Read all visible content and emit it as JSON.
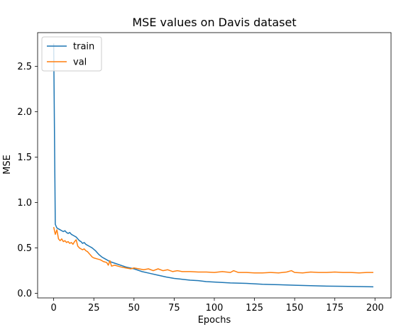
{
  "chart_data": {
    "type": "line",
    "title": "MSE values on Davis dataset",
    "xlabel": "Epochs",
    "ylabel": "MSE",
    "xlim": [
      -10,
      210
    ],
    "ylim": [
      -0.05,
      2.87
    ],
    "xticks": [
      0,
      25,
      50,
      75,
      100,
      125,
      150,
      175,
      200
    ],
    "yticks": [
      0.0,
      0.5,
      1.0,
      1.5,
      2.0,
      2.5
    ],
    "ytick_labels": [
      "0.0",
      "0.5",
      "1.0",
      "1.5",
      "2.0",
      "2.5"
    ],
    "grid": false,
    "legend_position": "top-left",
    "series": [
      {
        "name": "train",
        "color": "#1f77b4",
        "points": [
          [
            0,
            2.75
          ],
          [
            1,
            0.76
          ],
          [
            2,
            0.72
          ],
          [
            3,
            0.71
          ],
          [
            4,
            0.7
          ],
          [
            5,
            0.69
          ],
          [
            6,
            0.68
          ],
          [
            7,
            0.69
          ],
          [
            8,
            0.67
          ],
          [
            9,
            0.66
          ],
          [
            10,
            0.67
          ],
          [
            11,
            0.65
          ],
          [
            12,
            0.64
          ],
          [
            13,
            0.63
          ],
          [
            14,
            0.62
          ],
          [
            15,
            0.6
          ],
          [
            16,
            0.58
          ],
          [
            17,
            0.57
          ],
          [
            18,
            0.55
          ],
          [
            19,
            0.56
          ],
          [
            20,
            0.54
          ],
          [
            22,
            0.52
          ],
          [
            24,
            0.5
          ],
          [
            26,
            0.47
          ],
          [
            28,
            0.43
          ],
          [
            30,
            0.4
          ],
          [
            32,
            0.38
          ],
          [
            35,
            0.35
          ],
          [
            40,
            0.32
          ],
          [
            45,
            0.29
          ],
          [
            50,
            0.27
          ],
          [
            55,
            0.24
          ],
          [
            60,
            0.22
          ],
          [
            65,
            0.2
          ],
          [
            70,
            0.18
          ],
          [
            75,
            0.165
          ],
          [
            80,
            0.155
          ],
          [
            85,
            0.145
          ],
          [
            90,
            0.14
          ],
          [
            95,
            0.13
          ],
          [
            100,
            0.125
          ],
          [
            110,
            0.115
          ],
          [
            120,
            0.11
          ],
          [
            130,
            0.1
          ],
          [
            140,
            0.095
          ],
          [
            150,
            0.09
          ],
          [
            160,
            0.085
          ],
          [
            170,
            0.08
          ],
          [
            180,
            0.078
          ],
          [
            190,
            0.075
          ],
          [
            199,
            0.072
          ]
        ]
      },
      {
        "name": "val",
        "color": "#ff7f0e",
        "points": [
          [
            0,
            0.73
          ],
          [
            1,
            0.65
          ],
          [
            2,
            0.7
          ],
          [
            3,
            0.6
          ],
          [
            4,
            0.58
          ],
          [
            5,
            0.6
          ],
          [
            6,
            0.57
          ],
          [
            7,
            0.58
          ],
          [
            8,
            0.56
          ],
          [
            9,
            0.57
          ],
          [
            10,
            0.55
          ],
          [
            11,
            0.56
          ],
          [
            12,
            0.54
          ],
          [
            13,
            0.57
          ],
          [
            14,
            0.59
          ],
          [
            15,
            0.52
          ],
          [
            16,
            0.5
          ],
          [
            17,
            0.49
          ],
          [
            18,
            0.48
          ],
          [
            19,
            0.49
          ],
          [
            20,
            0.47
          ],
          [
            21,
            0.46
          ],
          [
            22,
            0.44
          ],
          [
            23,
            0.42
          ],
          [
            24,
            0.4
          ],
          [
            25,
            0.39
          ],
          [
            27,
            0.38
          ],
          [
            29,
            0.37
          ],
          [
            31,
            0.35
          ],
          [
            33,
            0.34
          ],
          [
            34,
            0.31
          ],
          [
            35,
            0.36
          ],
          [
            36,
            0.3
          ],
          [
            38,
            0.31
          ],
          [
            40,
            0.3
          ],
          [
            42,
            0.29
          ],
          [
            45,
            0.28
          ],
          [
            48,
            0.27
          ],
          [
            50,
            0.28
          ],
          [
            53,
            0.27
          ],
          [
            56,
            0.26
          ],
          [
            59,
            0.27
          ],
          [
            62,
            0.25
          ],
          [
            65,
            0.27
          ],
          [
            68,
            0.25
          ],
          [
            71,
            0.26
          ],
          [
            74,
            0.24
          ],
          [
            77,
            0.25
          ],
          [
            80,
            0.24
          ],
          [
            85,
            0.24
          ],
          [
            90,
            0.235
          ],
          [
            95,
            0.235
          ],
          [
            100,
            0.23
          ],
          [
            105,
            0.24
          ],
          [
            110,
            0.23
          ],
          [
            112,
            0.25
          ],
          [
            115,
            0.23
          ],
          [
            120,
            0.23
          ],
          [
            125,
            0.225
          ],
          [
            130,
            0.225
          ],
          [
            135,
            0.23
          ],
          [
            140,
            0.225
          ],
          [
            145,
            0.235
          ],
          [
            148,
            0.25
          ],
          [
            150,
            0.23
          ],
          [
            155,
            0.225
          ],
          [
            160,
            0.235
          ],
          [
            165,
            0.23
          ],
          [
            170,
            0.23
          ],
          [
            175,
            0.235
          ],
          [
            180,
            0.23
          ],
          [
            185,
            0.23
          ],
          [
            190,
            0.225
          ],
          [
            195,
            0.23
          ],
          [
            199,
            0.23
          ]
        ]
      }
    ]
  }
}
